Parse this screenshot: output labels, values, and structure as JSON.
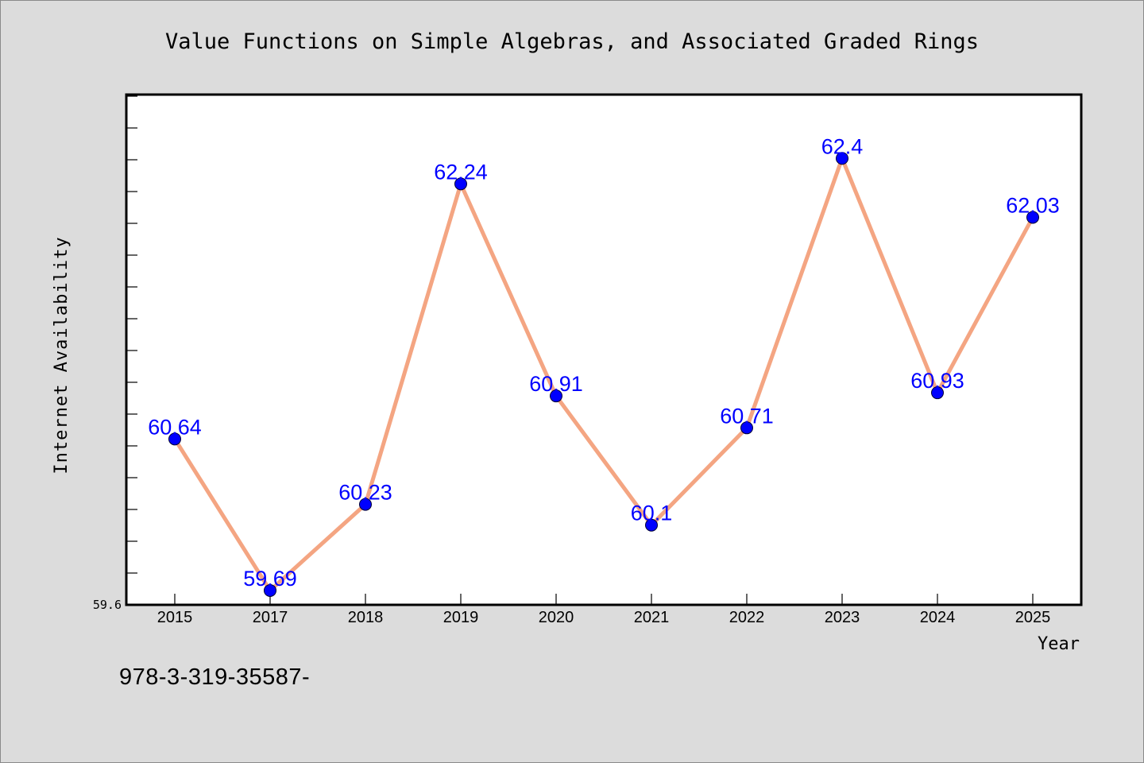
{
  "chart_data": {
    "type": "line",
    "title": "Value Functions on Simple Algebras, and Associated Graded Rings",
    "xlabel": "Year",
    "ylabel": "Internet Availability",
    "categories": [
      "2015",
      "2017",
      "2018",
      "2019",
      "2020",
      "2021",
      "2022",
      "2023",
      "2024",
      "2025"
    ],
    "series": [
      {
        "values": [
          60.64,
          59.69,
          60.23,
          62.24,
          60.91,
          60.1,
          60.71,
          62.4,
          60.93,
          62.03
        ],
        "labels": [
          "60.64",
          "59.69",
          "60.23",
          "62.24",
          "60.91",
          "60.1",
          "60.71",
          "62.4",
          "60.93",
          "62.03"
        ]
      }
    ],
    "y_tick_labels": [
      "59.6"
    ],
    "ylim": [
      59.6,
      62.8
    ],
    "grid": false,
    "colors": {
      "line": "#f4a582",
      "marker": "#0000ff",
      "label": "#0000ff",
      "plot_background": "#ffffff",
      "page_background": "#dcdcdc"
    }
  },
  "footer_text": "978-3-319-35587-"
}
